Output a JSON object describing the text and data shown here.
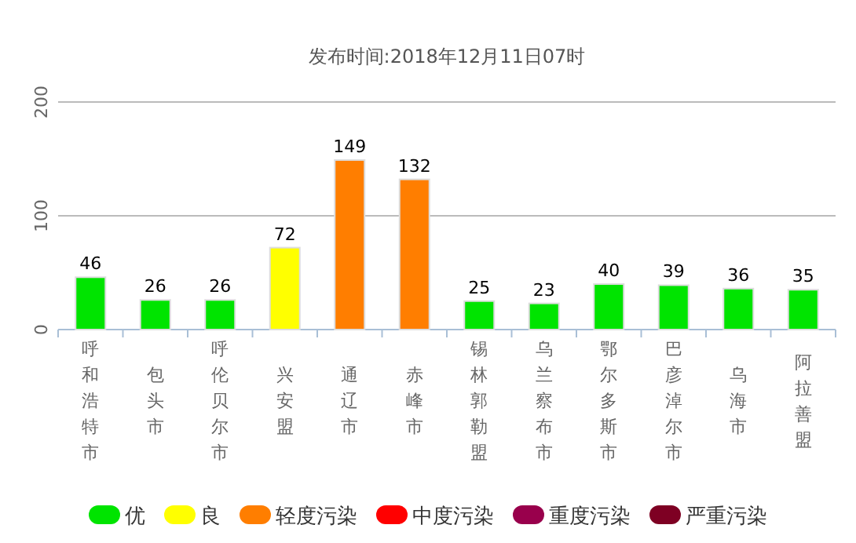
{
  "chart_data": {
    "type": "bar",
    "title": "发布时间:2018年12月11日07时",
    "categories": [
      "呼和浩特市",
      "包头市",
      "呼伦贝尔市",
      "兴安盟",
      "通辽市",
      "赤峰市",
      "锡林郭勒盟",
      "乌兰察布市",
      "鄂尔多斯市",
      "巴彦淖尔市",
      "乌海市",
      "阿拉善盟"
    ],
    "series": [
      {
        "name": "优",
        "color": "#00e400",
        "values": [
          46,
          26,
          26,
          null,
          null,
          null,
          25,
          23,
          40,
          39,
          36,
          35
        ]
      },
      {
        "name": "良",
        "color": "#ffff00",
        "values": [
          null,
          null,
          null,
          72,
          null,
          null,
          null,
          null,
          null,
          null,
          null,
          null
        ]
      },
      {
        "name": "轻度污染",
        "color": "#ff7e00",
        "values": [
          null,
          null,
          null,
          null,
          149,
          132,
          null,
          null,
          null,
          null,
          null,
          null
        ]
      },
      {
        "name": "中度污染",
        "color": "#ff0000",
        "values": [
          null,
          null,
          null,
          null,
          null,
          null,
          null,
          null,
          null,
          null,
          null,
          null
        ]
      },
      {
        "name": "重度污染",
        "color": "#99004c",
        "values": [
          null,
          null,
          null,
          null,
          null,
          null,
          null,
          null,
          null,
          null,
          null,
          null
        ]
      },
      {
        "name": "严重污染",
        "color": "#7e0023",
        "values": [
          null,
          null,
          null,
          null,
          null,
          null,
          null,
          null,
          null,
          null,
          null,
          null
        ]
      }
    ],
    "stacked": true,
    "ylim": [
      0,
      200
    ],
    "yticks": [
      0,
      100,
      200
    ],
    "grid": "y",
    "data_labels": true,
    "legend": "bottom"
  }
}
